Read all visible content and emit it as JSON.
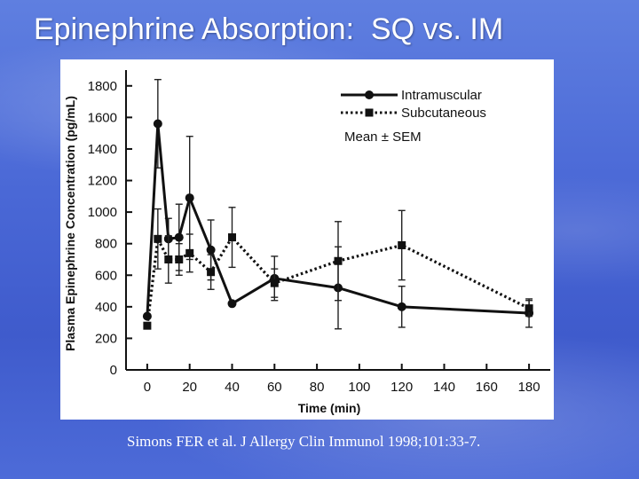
{
  "slide": {
    "title": "Epinephrine Absorption:  SQ vs. IM",
    "citation": "Simons FER et al.  J Allergy Clin Immunol 1998;101:33-7."
  },
  "chart_data": {
    "type": "line",
    "title": "",
    "xlabel": "Time (min)",
    "ylabel": "Plasma Epinephrine Concentration (pg/mL)",
    "xlim": [
      -10,
      190
    ],
    "ylim": [
      0,
      1900
    ],
    "xticks": [
      "0",
      "20",
      "40",
      "60",
      "80",
      "100",
      "120",
      "140",
      "160",
      "180"
    ],
    "yticks": [
      "0",
      "200",
      "400",
      "600",
      "800",
      "1000",
      "1200",
      "1400",
      "1600",
      "1800"
    ],
    "grid": false,
    "legend_position": "top-right",
    "legend_note": "Mean ± SEM",
    "series": [
      {
        "name": "Intramuscular",
        "style": "solid",
        "marker": "circle",
        "points": [
          {
            "x": 0,
            "y": 340,
            "err": 0
          },
          {
            "x": 5,
            "y": 1560,
            "err": 280
          },
          {
            "x": 10,
            "y": 830,
            "err": 130
          },
          {
            "x": 15,
            "y": 840,
            "err": 210
          },
          {
            "x": 20,
            "y": 1090,
            "err": 390
          },
          {
            "x": 30,
            "y": 760,
            "err": 190
          },
          {
            "x": 40,
            "y": 420,
            "err": 0
          },
          {
            "x": 60,
            "y": 580,
            "err": 140
          },
          {
            "x": 90,
            "y": 520,
            "err": 260
          },
          {
            "x": 120,
            "y": 400,
            "err": 130
          },
          {
            "x": 180,
            "y": 360,
            "err": 90
          }
        ]
      },
      {
        "name": "Subcutaneous",
        "style": "dotted",
        "marker": "square",
        "points": [
          {
            "x": 0,
            "y": 280,
            "err": 0
          },
          {
            "x": 5,
            "y": 830,
            "err": 190
          },
          {
            "x": 10,
            "y": 700,
            "err": 150
          },
          {
            "x": 15,
            "y": 700,
            "err": 100
          },
          {
            "x": 20,
            "y": 740,
            "err": 120
          },
          {
            "x": 30,
            "y": 620,
            "err": 110
          },
          {
            "x": 40,
            "y": 840,
            "err": 190
          },
          {
            "x": 60,
            "y": 550,
            "err": 90
          },
          {
            "x": 90,
            "y": 690,
            "err": 250
          },
          {
            "x": 120,
            "y": 790,
            "err": 220
          },
          {
            "x": 180,
            "y": 390,
            "err": 50
          }
        ]
      }
    ]
  }
}
